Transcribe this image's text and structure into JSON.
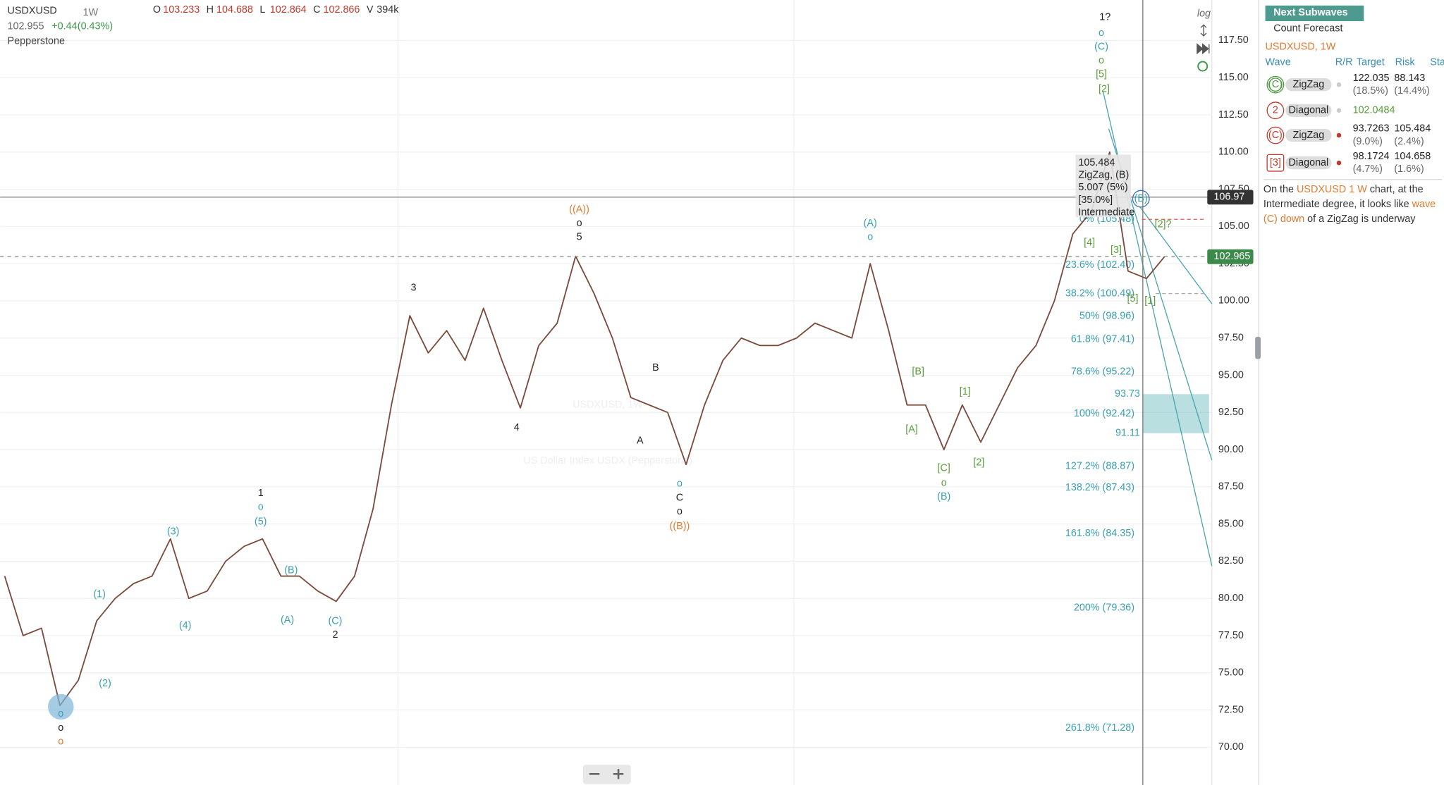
{
  "chart_data": {
    "type": "line",
    "color": "#7a4b3c",
    "values": [
      81.5,
      77.5,
      78,
      72.8,
      74.5,
      78.5,
      80,
      81,
      81.5,
      84,
      80,
      80.5,
      82.5,
      83.5,
      84,
      81.5,
      81.5,
      80.5,
      79.8,
      81.5,
      86,
      93,
      99,
      96.5,
      98,
      96,
      99.5,
      96,
      92.8,
      97,
      98.5,
      103,
      100.5,
      97.5,
      93.5,
      93,
      92.5,
      89,
      93,
      96,
      97.5,
      97,
      97,
      97.5,
      98.5,
      98,
      97.5,
      102.5,
      98,
      93,
      93,
      90,
      93,
      90.5,
      93,
      95.5,
      97,
      100,
      104.5,
      106,
      110,
      102,
      101.5,
      103
    ],
    "ylim": [
      67.46,
      120.22
    ],
    "yticks": [
      {
        "value": 117.5,
        "label": "117.50"
      },
      {
        "value": 115,
        "label": "115.00"
      },
      {
        "value": 112.5,
        "label": "112.50"
      },
      {
        "value": 110,
        "label": "110.00"
      },
      {
        "value": 107.5,
        "label": "107.50"
      },
      {
        "value": 105,
        "label": "105.00"
      },
      {
        "value": 102.5,
        "label": "102.50"
      },
      {
        "value": 100,
        "label": "100.00"
      },
      {
        "value": 97.5,
        "label": "97.50"
      },
      {
        "value": 95,
        "label": "95.00"
      },
      {
        "value": 92.5,
        "label": "92.50"
      },
      {
        "value": 90,
        "label": "90.00"
      },
      {
        "value": 87.5,
        "label": "87.50"
      },
      {
        "value": 85,
        "label": "85.00"
      },
      {
        "value": 82.5,
        "label": "82.50"
      },
      {
        "value": 80,
        "label": "80.00"
      },
      {
        "value": 77.5,
        "label": "77.50"
      },
      {
        "value": 75,
        "label": "75.00"
      },
      {
        "value": 72.5,
        "label": "72.50"
      },
      {
        "value": 70,
        "label": "70.00"
      }
    ],
    "grid": true,
    "crosshair_price": 106.97,
    "last_price": 102.965,
    "fib_levels": [
      {
        "value": 105.48,
        "label": "0% (105.48)"
      },
      {
        "value": 102.4,
        "label": "23.6% (102.40)"
      },
      {
        "value": 100.49,
        "label": "38.2% (100.49)"
      },
      {
        "value": 98.96,
        "label": "50% (98.96)"
      },
      {
        "value": 97.41,
        "label": "61.8% (97.41)"
      },
      {
        "value": 95.22,
        "label": "78.6% (95.22)"
      },
      {
        "value": 92.42,
        "label": "100% (92.42)"
      },
      {
        "value": 88.87,
        "label": "127.2% (88.87)"
      },
      {
        "value": 87.43,
        "label": "138.2% (87.43)"
      },
      {
        "value": 84.35,
        "label": "161.8% (84.35)"
      },
      {
        "value": 79.36,
        "label": "200% (79.36)"
      },
      {
        "value": 71.28,
        "label": "261.8% (71.28)"
      }
    ],
    "target_zone": {
      "high": 93.73,
      "low": 91.11
    },
    "wave_labels": [
      {
        "text": "o",
        "color": "#3a9fb0"
      },
      {
        "text": "o",
        "color": "#222222"
      },
      {
        "text": "o",
        "color": "#e07a2f"
      },
      {
        "text": "(1)",
        "color": "#3a9fb0"
      },
      {
        "text": "(2)",
        "color": "#3a9fb0"
      },
      {
        "text": "(3)",
        "color": "#3a9fb0"
      },
      {
        "text": "(4)",
        "color": "#3a9fb0"
      },
      {
        "text": "(5)",
        "color": "#3a9fb0"
      },
      {
        "text": "o",
        "color": "#3a9fb0"
      },
      {
        "text": "1",
        "color": "#222222"
      },
      {
        "text": "(B)",
        "color": "#3a9fb0"
      },
      {
        "text": "(A)",
        "color": "#3a9fb0"
      },
      {
        "text": "(C)",
        "color": "#3a9fb0"
      },
      {
        "text": "2",
        "color": "#222222"
      },
      {
        "text": "3",
        "color": "#222222"
      },
      {
        "text": "4",
        "color": "#222222"
      },
      {
        "text": "((A))",
        "color": "#e07a2f"
      },
      {
        "text": "o",
        "color": "#222222"
      },
      {
        "text": "5",
        "color": "#222222"
      },
      {
        "text": "B",
        "color": "#222222"
      },
      {
        "text": "A",
        "color": "#222222"
      },
      {
        "text": "o",
        "color": "#3a9fb0"
      },
      {
        "text": "C",
        "color": "#222222"
      },
      {
        "text": "o",
        "color": "#222222"
      },
      {
        "text": "((B))",
        "color": "#e07a2f"
      },
      {
        "text": "(A)",
        "color": "#3a9fb0"
      },
      {
        "text": "o",
        "color": "#3a9fb0"
      },
      {
        "text": "[B]",
        "color": "#5a9e3a"
      },
      {
        "text": "[A]",
        "color": "#5a9e3a"
      },
      {
        "text": "[1]",
        "color": "#5a9e3a"
      },
      {
        "text": "[C]",
        "color": "#5a9e3a"
      },
      {
        "text": "o",
        "color": "#5a9e3a"
      },
      {
        "text": "(B)",
        "color": "#3a9fb0"
      },
      {
        "text": "[2]",
        "color": "#5a9e3a"
      },
      {
        "text": "1?",
        "color": "#222222"
      },
      {
        "text": "o",
        "color": "#3a9fb0"
      },
      {
        "text": "(C)",
        "color": "#3a9fb0"
      },
      {
        "text": "o",
        "color": "#5a9e3a"
      },
      {
        "text": "[5]",
        "color": "#5a9e3a"
      },
      {
        "text": "[2]",
        "color": "#5a9e3a"
      },
      {
        "text": "[4]",
        "color": "#5a9e3a"
      },
      {
        "text": "[3]",
        "color": "#5a9e3a"
      },
      {
        "text": "[5]",
        "color": "#5a9e3a"
      },
      {
        "text": "[1]",
        "color": "#5a9e3a"
      },
      {
        "text": "[2]?",
        "color": "#5a9e3a"
      },
      {
        "text": "(B)",
        "color": "#3a9fb0"
      }
    ],
    "tooltip": [
      "105.484",
      "ZigZag, (B)",
      "5.007 (5%)",
      "[35.0%]",
      "Intermediate"
    ]
  },
  "header": {
    "symbol": "USDXUSD",
    "interval": "1W",
    "ohlcv": [
      {
        "key": "O",
        "value": "103.233"
      },
      {
        "key": "H",
        "value": "104.688"
      },
      {
        "key": "L",
        "value": "102.864"
      },
      {
        "key": "C",
        "value": "102.866"
      },
      {
        "key": "V",
        "value": "394k"
      }
    ],
    "price": "102.955",
    "change": "+0.44",
    "change_pct": "(0.43%)",
    "broker": "Pepperstone",
    "log_label": "log"
  },
  "watermark": {
    "title": "USDXUSD, 1W",
    "subtitle": "US Dollar Index USDX (Pepperstone)"
  },
  "panel": {
    "tab": "Next Subwaves",
    "subtitle": "Count Forecast",
    "symbol": "USDXUSD, 1W",
    "columns": [
      "Wave",
      "R/R",
      "Target",
      "Risk",
      "Sta"
    ],
    "rows": [
      {
        "wave": "(C)",
        "badge": "double-circle",
        "color": "#4c9a3f",
        "pattern": "ZigZag",
        "target": "122.035",
        "target_pct": "(18.5%)",
        "risk": "88.143",
        "risk_pct": "(14.4%)"
      },
      {
        "wave": "2",
        "badge": "circle",
        "color": "#c0392b",
        "pattern": "Diagonal",
        "target": "102.0484"
      },
      {
        "wave": "(C)",
        "badge": "circle",
        "color": "#c0392b",
        "pattern": "ZigZag",
        "target": "93.7263",
        "target_pct": "(9.0%)",
        "risk": "105.484",
        "risk_pct": "(2.4%)"
      },
      {
        "wave": "[3]",
        "badge": "square",
        "color": "#c0392b",
        "pattern": "Diagonal",
        "target": "98.1724",
        "target_pct": "(4.7%)",
        "risk": "104.658",
        "risk_pct": "(1.6%)"
      }
    ],
    "description": [
      {
        "text": "On the ",
        "color": "#333333"
      },
      {
        "text": "USDXUSD 1 W",
        "color": "#e07a2f"
      },
      {
        "text": " chart, at the",
        "color": "#333333"
      },
      {
        "text": "Intermediate degree, it looks like ",
        "color": "#333333"
      },
      {
        "text": "wave",
        "color": "#e07a2f"
      },
      {
        "text": "(C) down",
        "color": "#e07a2f"
      },
      {
        "text": " of a ZigZag is underway",
        "color": "#333333"
      }
    ]
  }
}
